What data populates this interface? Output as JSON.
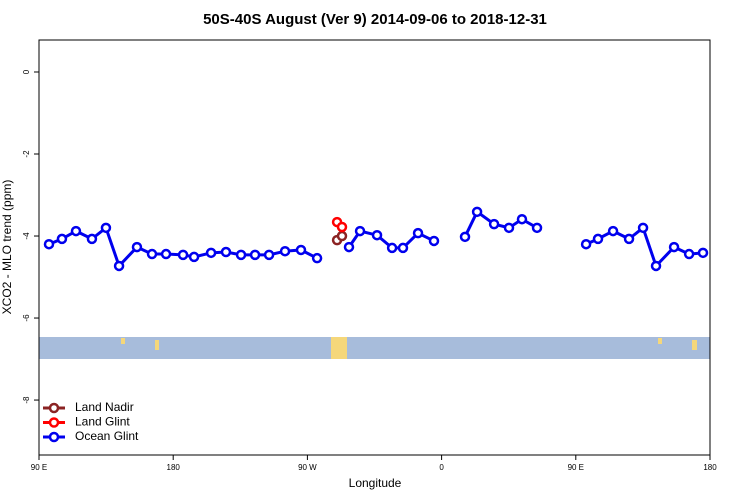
{
  "chart_data": {
    "type": "line",
    "title": "50S-40S August (Ver 9)   2014-09-06 to 2018-12-31",
    "xlabel": "Longitude",
    "ylabel": "XCO2 - MLO trend (ppm)",
    "xlim": [
      90,
      540
    ],
    "ylim": [
      -9.34,
      0.78
    ],
    "xticks": [
      {
        "value": 90,
        "label": "90 E"
      },
      180,
      {
        "value": 270,
        "label": "90 W"
      },
      {
        "value": 360,
        "label": "0"
      },
      {
        "value": 450,
        "label": "90 E"
      },
      {
        "value": 540,
        "label": "180"
      }
    ],
    "yticks": [
      0,
      -2,
      -4,
      -6,
      -8
    ],
    "legend": "bottom-left",
    "series": [
      {
        "name": "Land Nadir",
        "color": "#8b2323",
        "x": [
          289.9,
          293.2
        ],
        "values": [
          -4.1,
          -4.0
        ]
      },
      {
        "name": "Land Glint",
        "color": "#ff0000",
        "x": [
          289.9,
          293.2
        ],
        "values": [
          -3.66,
          -3.78
        ]
      },
      {
        "name": "Ocean Glint",
        "color": "#0000ee",
        "x": [
          96.7,
          105.4,
          114.8,
          125.5,
          134.9,
          143.7,
          155.7,
          165.8,
          175.2,
          186.6,
          194,
          205.4,
          215.4,
          225.5,
          234.9,
          244.3,
          255,
          265.7,
          276.5,
          287,
          297.9,
          305.3,
          316.7,
          326.8,
          334.1,
          344.2,
          354.9,
          365,
          375.7,
          383.8,
          395.2,
          405.2,
          413.9,
          424,
          445,
          456.9,
          464.9,
          475,
          485.7,
          495.1,
          503.8,
          515.9,
          526,
          535.3
        ],
        "values": [
          -4.2,
          -4.07,
          -3.88,
          -4.07,
          -3.8,
          -4.73,
          -4.27,
          -4.44,
          -4.44,
          -4.46,
          -4.51,
          -4.41,
          -4.39,
          -4.46,
          -4.46,
          -4.46,
          -4.37,
          -4.34,
          -4.54,
          null,
          -4.27,
          -3.88,
          -3.98,
          -4.29,
          -4.29,
          -3.93,
          -4.12,
          null,
          -4.02,
          -3.41,
          -3.71,
          -3.8,
          -3.59,
          -3.8,
          null,
          -4.2,
          -4.07,
          -3.88,
          -4.07,
          -3.8,
          -4.73,
          -4.27,
          -4.44,
          -4.41
        ]
      }
    ]
  }
}
